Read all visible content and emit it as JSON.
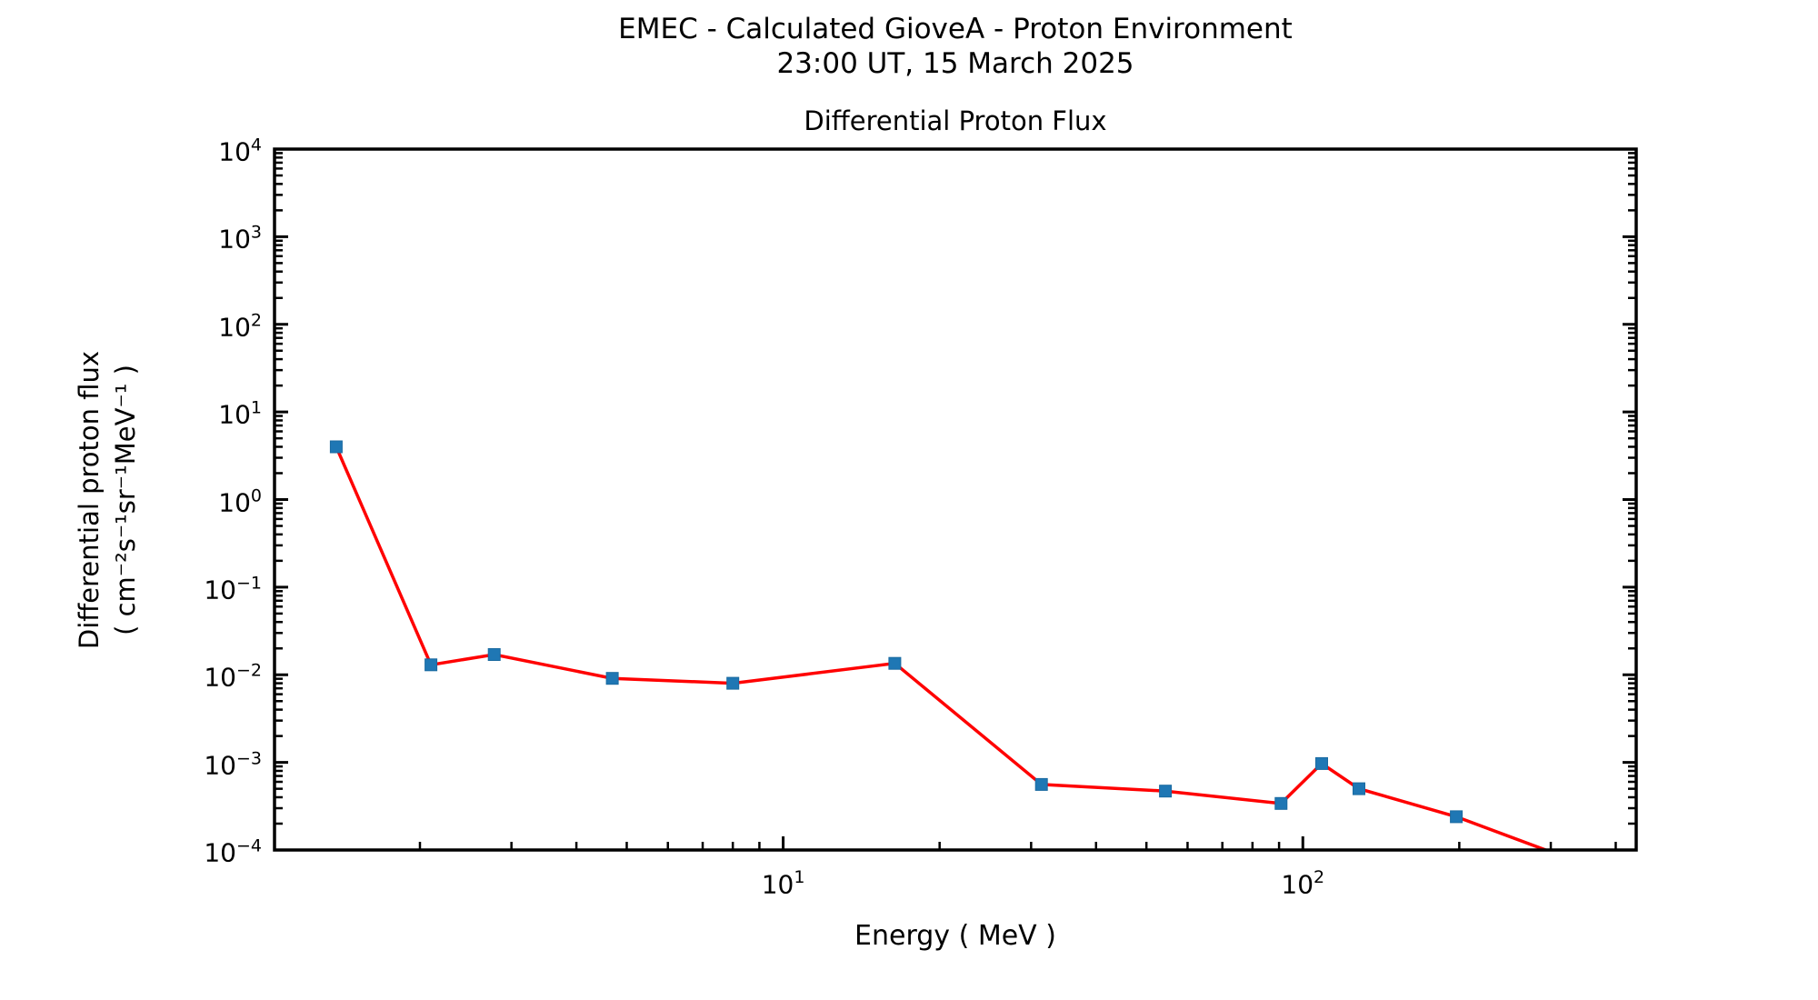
{
  "header": {
    "title_line1": "EMEC - Calculated GioveA - Proton Environment",
    "title_line2": "23:00 UT, 15 March 2025"
  },
  "chart_data": {
    "type": "line",
    "title": "Differential Proton Flux",
    "xlabel": "Energy ( MeV )",
    "ylabel": "Differential proton flux",
    "ylabel_units": "( cm⁻²s⁻¹sr⁻¹MeV⁻¹ )",
    "x_scale": "log",
    "y_scale": "log",
    "xlim": [
      1.05,
      438
    ],
    "ylim": [
      0.0001,
      10000
    ],
    "x_major_tick_values": [
      10,
      100
    ],
    "y_major_tick_values": [
      0.0001,
      0.001,
      0.01,
      0.1,
      1,
      10,
      100,
      1000,
      10000
    ],
    "grid": false,
    "legend_position": "none",
    "line_color": "#ff0000",
    "marker_color": "#1f77b4",
    "marker_shape": "square",
    "axis_color": "#000000",
    "series": [
      {
        "name": "Differential proton flux",
        "x": [
          1.38,
          2.1,
          2.78,
          4.69,
          8.0,
          16.4,
          31.4,
          54.4,
          90.8,
          108.7,
          128.2,
          197.4,
          334
        ],
        "y": [
          4.0,
          0.013,
          0.017,
          0.0091,
          0.008,
          0.0135,
          0.00056,
          0.00047,
          0.00034,
          0.00097,
          0.0005,
          0.00024,
          7.5e-05
        ]
      }
    ]
  }
}
